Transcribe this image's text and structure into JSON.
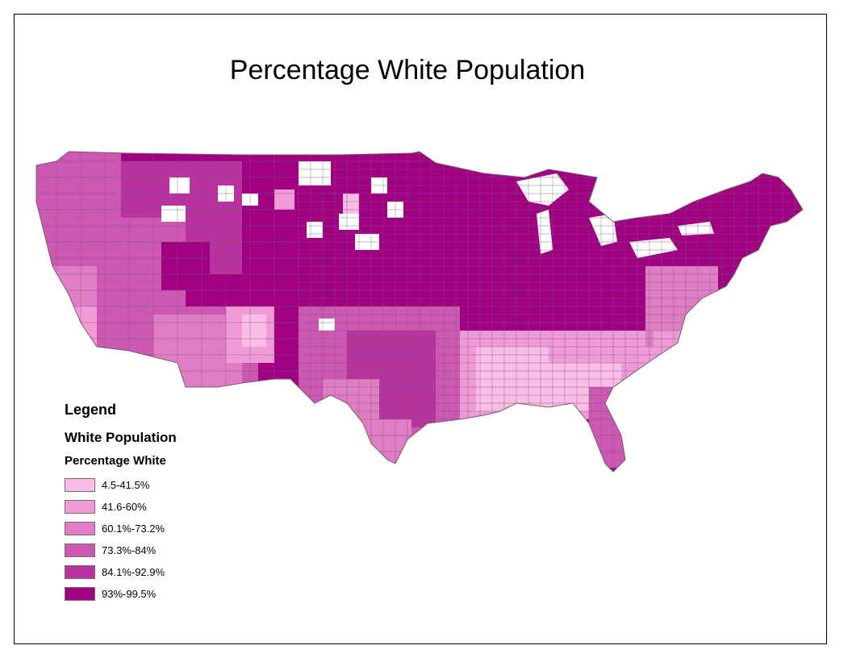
{
  "title": "Percentage White Population",
  "legend": {
    "title": "Legend",
    "layer": "White Population",
    "field": "Percentage White",
    "classes": [
      {
        "label": "4.5-41.5%",
        "color": "#fbbde6"
      },
      {
        "label": "41.6-60%",
        "color": "#f09bd7"
      },
      {
        "label": "60.1%-73.2%",
        "color": "#e07dc6"
      },
      {
        "label": "73.3%-84%",
        "color": "#cc58b3"
      },
      {
        "label": "84.1%-92.9%",
        "color": "#b8339f"
      },
      {
        "label": "93%-99.5%",
        "color": "#a10082"
      }
    ]
  },
  "colors": {
    "county_border": "#7a5a72",
    "frame": "#000000",
    "empty_county": "#ffffff"
  }
}
